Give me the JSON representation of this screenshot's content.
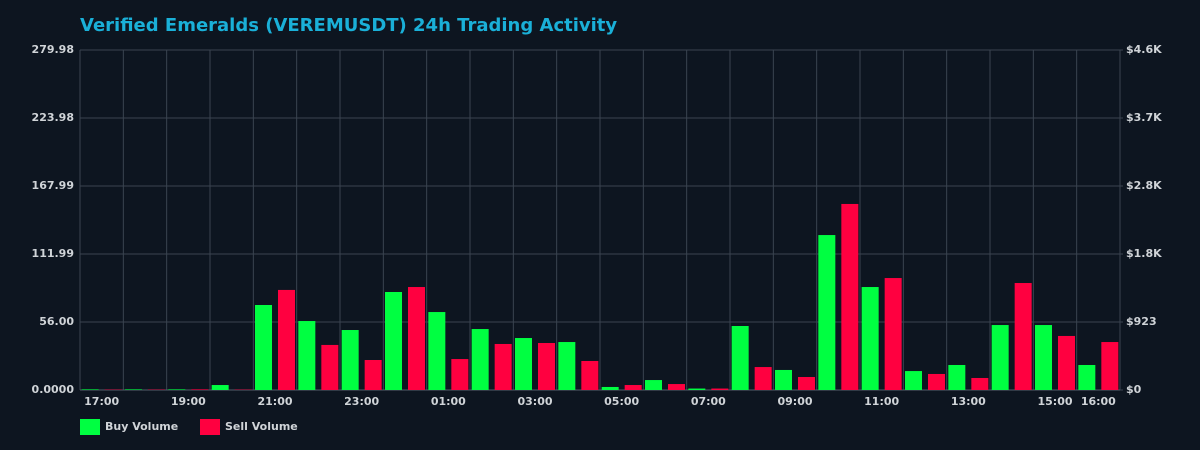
{
  "chart_data": {
    "type": "bar",
    "title": "Verified Emeralds (VEREMUSDT) 24h Trading Activity",
    "categories": [
      "17:00",
      null,
      "19:00",
      null,
      "21:00",
      null,
      "23:00",
      null,
      "01:00",
      null,
      "03:00",
      null,
      "05:00",
      null,
      "07:00",
      null,
      "09:00",
      null,
      "11:00",
      null,
      "13:00",
      null,
      "15:00",
      "16:00"
    ],
    "series": [
      {
        "name": "Buy Volume",
        "color": "#00ff41",
        "values": [
          0.5,
          0.5,
          0.5,
          4.1,
          70.0,
          56.8,
          49.4,
          80.7,
          64.2,
          50.2,
          42.8,
          39.5,
          2.5,
          8.2,
          1.2,
          52.7,
          16.5,
          127.6,
          84.8,
          15.6,
          20.6,
          53.5,
          53.5,
          20.6
        ]
      },
      {
        "name": "Sell Volume",
        "color": "#ff0040",
        "values": [
          0.3,
          0.3,
          0.5,
          0.3,
          82.4,
          37.1,
          24.7,
          84.8,
          25.5,
          37.9,
          38.7,
          23.9,
          4.1,
          4.9,
          1.2,
          18.9,
          10.7,
          153.2,
          92.2,
          13.2,
          9.9,
          88.1,
          44.5,
          39.5
        ]
      }
    ],
    "ylim": [
      0,
      279.98
    ],
    "yticks": [
      {
        "value": 0,
        "label": "0.0000"
      },
      {
        "value": 56,
        "label": "56.00"
      },
      111.99,
      167.99,
      223.98,
      279.98
    ],
    "y2lim": [
      0,
      4615
    ],
    "y2ticks": [
      {
        "value": 0,
        "label": "$0"
      },
      {
        "value": 923,
        "label": "$923"
      },
      {
        "value": 1846,
        "label": "$1.8K"
      },
      {
        "value": 2769,
        "label": "$2.8K"
      },
      {
        "value": 3692,
        "label": "$3.7K"
      },
      {
        "value": 4615,
        "label": "$4.6K"
      }
    ],
    "grid": true,
    "legend": "bottom-left"
  }
}
